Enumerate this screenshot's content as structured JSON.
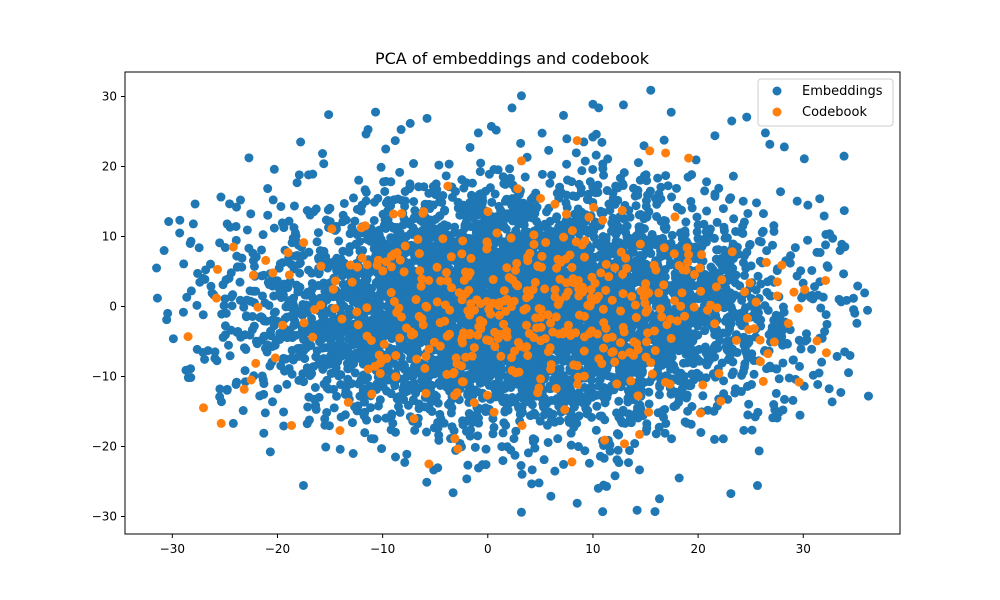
{
  "chart_data": {
    "type": "scatter",
    "title": "PCA of embeddings and codebook",
    "xlabel": "",
    "ylabel": "",
    "xlim": [
      -34.5,
      39.2
    ],
    "ylim": [
      -32.5,
      33.5
    ],
    "xticks": [
      -30,
      -20,
      -10,
      0,
      10,
      20,
      30
    ],
    "yticks": [
      -30,
      -20,
      -10,
      0,
      10,
      20,
      30
    ],
    "grid": false,
    "legend_position": "top-right",
    "series": [
      {
        "name": "Embeddings",
        "color": "#1f77b4",
        "generator": {
          "count": 6000,
          "center": [
            3.0,
            0.0
          ],
          "std": [
            12.0,
            8.0
          ],
          "x_range": [
            -31.5,
            36.2
          ],
          "y_range": [
            -29.5,
            30.9
          ],
          "seed": 7
        },
        "points": [
          [
            -31.5,
            5.5
          ],
          [
            36.2,
            -12.8
          ],
          [
            3.2,
            30.1
          ],
          [
            15.5,
            30.9
          ],
          [
            10.0,
            28.9
          ],
          [
            12.9,
            28.8
          ],
          [
            3.2,
            -29.4
          ],
          [
            15.9,
            -29.3
          ],
          [
            14.2,
            -29.1
          ],
          [
            8.5,
            -28.1
          ],
          [
            -28.3,
            9.0
          ],
          [
            -29.3,
            10.5
          ],
          [
            -28.0,
            11.8
          ],
          [
            -29.9,
            -4.6
          ],
          [
            -28.7,
            -9.1
          ],
          [
            -25.5,
            -12.9
          ],
          [
            -24.2,
            -16.7
          ],
          [
            35.1,
            -2.4
          ],
          [
            33.9,
            13.7
          ],
          [
            32.5,
            10.4
          ],
          [
            30.1,
            21.1
          ],
          [
            28.2,
            22.8
          ],
          [
            26.4,
            24.8
          ],
          [
            23.2,
            26.5
          ],
          [
            -17.8,
            23.5
          ],
          [
            -8.8,
            23.7
          ],
          [
            -12.8,
            -21.0
          ],
          [
            -7.7,
            -21.1
          ],
          [
            -5.8,
            -25.1
          ],
          [
            -3.3,
            -26.6
          ],
          [
            -20.3,
            19.6
          ],
          [
            -23.9,
            14.2
          ],
          [
            -21.3,
            -18.1
          ],
          [
            22.4,
            -18.9
          ],
          [
            27.1,
            -15.9
          ],
          [
            31.5,
            -9.5
          ],
          [
            0.8,
            25.2
          ],
          [
            7.2,
            27.3
          ],
          [
            6.0,
            -27.1
          ],
          [
            11.3,
            -25.7
          ],
          [
            18.2,
            -24.5
          ],
          [
            -0.9,
            24.8
          ],
          [
            21.6,
            24.4
          ],
          [
            -15.6,
            20.4
          ],
          [
            -10.1,
            -20.3
          ],
          [
            30.8,
            -6.1
          ],
          [
            33.5,
            8.0
          ],
          [
            -26.6,
            -6.3
          ]
        ]
      },
      {
        "name": "Codebook",
        "color": "#ff7f0e",
        "generator": {
          "count": 420,
          "center": [
            3.0,
            -1.0
          ],
          "std": [
            11.0,
            7.0
          ],
          "x_range": [
            -28.5,
            33.0
          ],
          "y_range": [
            -23.5,
            23.7
          ],
          "seed": 23
        },
        "points": [
          [
            -28.5,
            -4.3
          ],
          [
            -25.8,
            1.2
          ],
          [
            -25.7,
            5.3
          ],
          [
            -24.2,
            8.5
          ],
          [
            -19.0,
            7.7
          ],
          [
            -5.6,
            -22.5
          ],
          [
            8.0,
            -22.2
          ],
          [
            19.1,
            21.2
          ],
          [
            8.5,
            23.7
          ],
          [
            3.2,
            20.8
          ],
          [
            -3.8,
            17.2
          ],
          [
            29.6,
            -10.8
          ],
          [
            32.2,
            -6.6
          ],
          [
            26.2,
            -10.7
          ],
          [
            26.5,
            6.3
          ],
          [
            17.8,
            12.8
          ],
          [
            15.3,
            -15.1
          ],
          [
            13.0,
            -19.6
          ],
          [
            -22.5,
            -10.5
          ],
          [
            -2.4,
            -4.4
          ],
          [
            0.6,
            -15.1
          ],
          [
            4.0,
            7.6
          ],
          [
            -5.6,
            -6.1
          ],
          [
            6.4,
            2.4
          ]
        ]
      }
    ]
  }
}
